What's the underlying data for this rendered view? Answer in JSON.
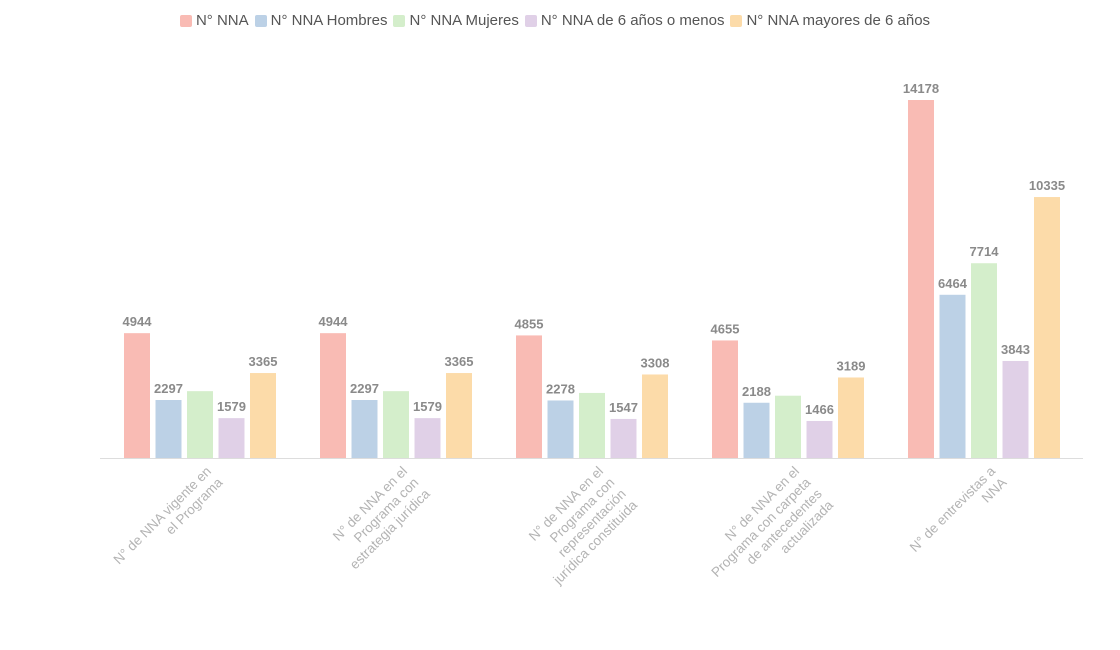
{
  "chart_data": {
    "type": "bar",
    "categories": [
      [
        "N° de NNA vigente en",
        "el Programa"
      ],
      [
        "N° de NNA en el",
        "Programa con",
        "estrategia jurídica"
      ],
      [
        "N° de NNA en el",
        "Programa con",
        "representación",
        "jurídica constituida"
      ],
      [
        "N° de NNA en el",
        "Programa con carpeta",
        "de antecedentes",
        "actualizada"
      ],
      [
        "N° de entrevistas a",
        "NNA"
      ]
    ],
    "series": [
      {
        "name": "N° NNA",
        "color": "#f9bbb4",
        "values": [
          4944,
          4944,
          4855,
          4655,
          14178
        ],
        "labels": [
          "4944",
          "4944",
          "4855",
          "4655",
          "14178"
        ]
      },
      {
        "name": "N° NNA Hombres",
        "color": "#bcd1e6",
        "values": [
          2297,
          2297,
          2278,
          2188,
          6464
        ],
        "labels": [
          "2297",
          "2297",
          "2278",
          "2188",
          "6464"
        ]
      },
      {
        "name": "N° NNA Mujeres",
        "color": "#d4eecb",
        "values": [
          2647,
          2647,
          2577,
          2467,
          7714
        ],
        "labels": [
          "",
          "",
          "",
          "",
          "7714"
        ]
      },
      {
        "name": "N° NNA  de 6 años o menos",
        "color": "#e0d0e7",
        "values": [
          1579,
          1579,
          1547,
          1466,
          3843
        ],
        "labels": [
          "1579",
          "1579",
          "1547",
          "1466",
          "3843"
        ]
      },
      {
        "name": "N° NNA mayores de 6 años",
        "color": "#fcdba9",
        "values": [
          3365,
          3365,
          3308,
          3189,
          10335
        ],
        "labels": [
          "3365",
          "3365",
          "3308",
          "3189",
          "10335"
        ]
      }
    ],
    "ylim": [
      0,
      16000
    ],
    "grid": false,
    "legend_position": "top-center"
  }
}
